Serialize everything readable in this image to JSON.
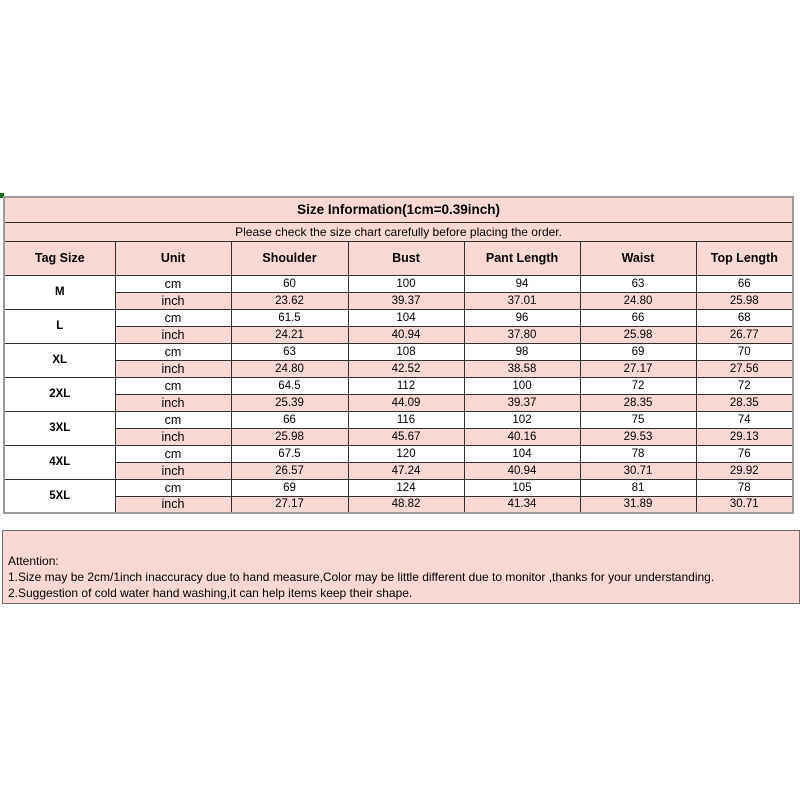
{
  "header": {
    "title": "Size Information(1cm=0.39inch)",
    "subtitle": "Please check the size chart carefully before placing the order."
  },
  "table": {
    "columns": [
      "Tag Size",
      "Unit",
      "Shoulder",
      "Bust",
      "Pant Length",
      "Waist",
      "Top Length"
    ],
    "unit_labels": [
      "cm",
      "inch"
    ],
    "rows": [
      {
        "tag": "M",
        "cm": [
          "60",
          "100",
          "94",
          "63",
          "66"
        ],
        "inch": [
          "23.62",
          "39.37",
          "37.01",
          "24.80",
          "25.98"
        ]
      },
      {
        "tag": "L",
        "cm": [
          "61.5",
          "104",
          "96",
          "66",
          "68"
        ],
        "inch": [
          "24.21",
          "40.94",
          "37.80",
          "25.98",
          "26.77"
        ]
      },
      {
        "tag": "XL",
        "cm": [
          "63",
          "108",
          "98",
          "69",
          "70"
        ],
        "inch": [
          "24.80",
          "42.52",
          "38.58",
          "27.17",
          "27.56"
        ]
      },
      {
        "tag": "2XL",
        "cm": [
          "64.5",
          "112",
          "100",
          "72",
          "72"
        ],
        "inch": [
          "25.39",
          "44.09",
          "39.37",
          "28.35",
          "28.35"
        ]
      },
      {
        "tag": "3XL",
        "cm": [
          "66",
          "116",
          "102",
          "75",
          "74"
        ],
        "inch": [
          "25.98",
          "45.67",
          "40.16",
          "29.53",
          "29.13"
        ]
      },
      {
        "tag": "4XL",
        "cm": [
          "67.5",
          "120",
          "104",
          "78",
          "76"
        ],
        "inch": [
          "26.57",
          "47.24",
          "40.94",
          "30.71",
          "29.92"
        ]
      },
      {
        "tag": "5XL",
        "cm": [
          "69",
          "124",
          "105",
          "81",
          "78"
        ],
        "inch": [
          "27.17",
          "48.82",
          "41.34",
          "31.89",
          "30.71"
        ]
      }
    ]
  },
  "attention": {
    "heading": "Attention:",
    "lines": [
      "1.Size may be 2cm/1inch inaccuracy due to hand measure,Color may be little different due to monitor ,thanks for your understanding.",
      "2.Suggestion of cold water hand washing,it can help items keep their shape."
    ]
  },
  "colors": {
    "pink": "#fad9d5",
    "border_inner": "#2f2f2f",
    "border_outer": "#9b9b9b",
    "text": "#000000",
    "green_corner_mark": "#1d6b1d"
  }
}
